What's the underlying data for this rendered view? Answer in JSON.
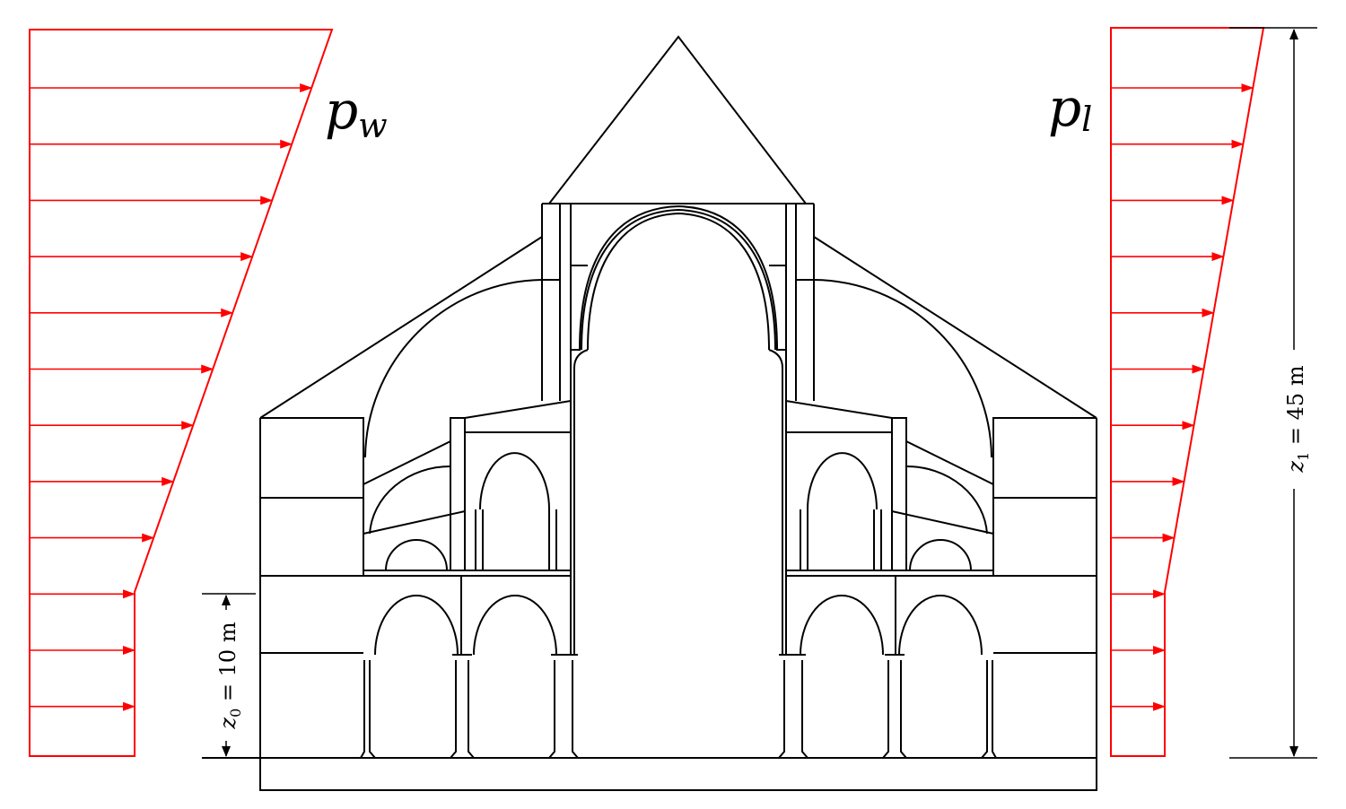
{
  "colors": {
    "load": "#ff0000",
    "structure": "#000000",
    "background": "#ffffff"
  },
  "labels": {
    "windward": {
      "base": "p",
      "sub": "w"
    },
    "leeward": {
      "base": "p",
      "sub": "l"
    },
    "z0_dimension": {
      "var": "z",
      "sub": "0",
      "rest": " = 10 m"
    },
    "z1_dimension": {
      "var": "z",
      "sub": "1",
      "rest": " = 45 m"
    }
  },
  "load_profile": {
    "z0": 10,
    "z1": 45,
    "windward_arrow_count": 12,
    "leeward_arrow_count": 12
  }
}
